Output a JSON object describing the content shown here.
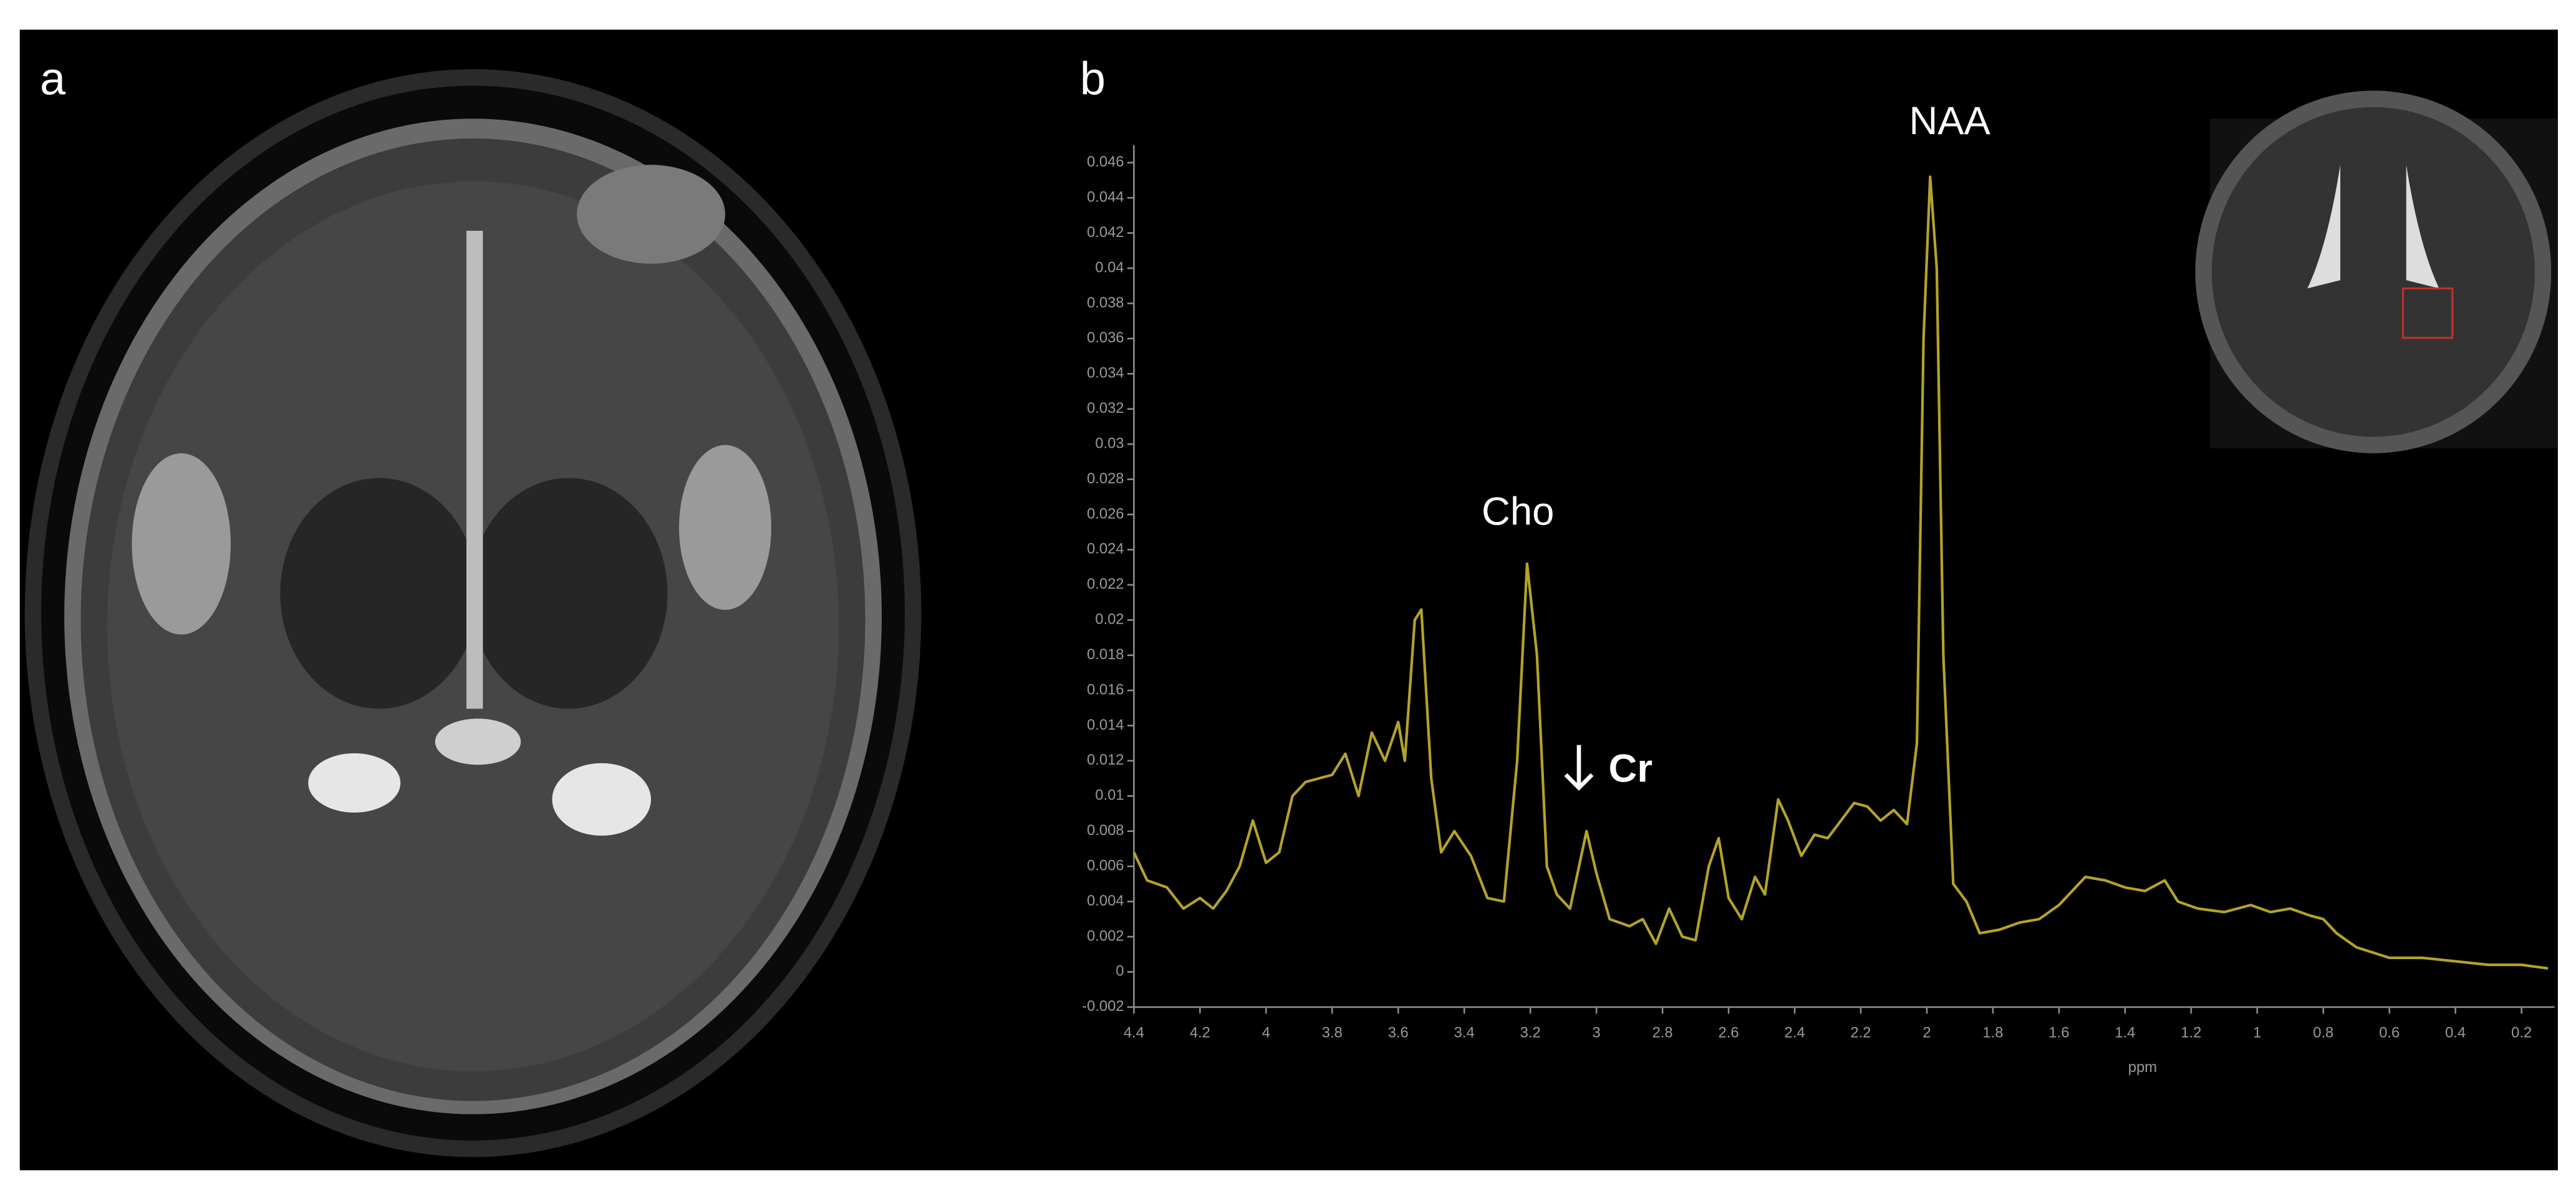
{
  "figure": {
    "panel_labels": [
      "a",
      "b"
    ]
  },
  "chart_data": {
    "type": "line",
    "x_label": "ppm",
    "color": "#b3a32a",
    "annotations": [
      "Cho",
      "Cr",
      "NAA"
    ],
    "xlim": [
      4.4,
      0.1
    ],
    "ylim": [
      -0.002,
      0.047
    ],
    "xticks": [
      4.4,
      4.2,
      4,
      3.8,
      3.6,
      3.4,
      3.2,
      3,
      2.8,
      2.6,
      2.4,
      2.2,
      2,
      1.8,
      1.6,
      1.4,
      1.2,
      1,
      0.8,
      0.6,
      0.4,
      0.2
    ],
    "yticks": [
      -0.002,
      0,
      0.002,
      0.004,
      0.006,
      0.008,
      0.01,
      0.012,
      0.014,
      0.016,
      0.018,
      0.02,
      0.022,
      0.024,
      0.026,
      0.028,
      0.03,
      0.032,
      0.034,
      0.036,
      0.038,
      0.04,
      0.042,
      0.044,
      0.046
    ],
    "x": [
      4.4,
      4.36,
      4.3,
      4.25,
      4.2,
      4.16,
      4.12,
      4.08,
      4.04,
      4.0,
      3.96,
      3.92,
      3.88,
      3.84,
      3.8,
      3.76,
      3.72,
      3.68,
      3.64,
      3.6,
      3.58,
      3.55,
      3.53,
      3.5,
      3.47,
      3.43,
      3.38,
      3.33,
      3.28,
      3.24,
      3.21,
      3.18,
      3.15,
      3.12,
      3.08,
      3.03,
      3.0,
      2.96,
      2.9,
      2.86,
      2.82,
      2.78,
      2.74,
      2.7,
      2.66,
      2.63,
      2.6,
      2.56,
      2.52,
      2.49,
      2.45,
      2.42,
      2.38,
      2.34,
      2.3,
      2.26,
      2.22,
      2.18,
      2.14,
      2.1,
      2.06,
      2.03,
      2.01,
      1.99,
      1.97,
      1.95,
      1.92,
      1.88,
      1.84,
      1.78,
      1.72,
      1.66,
      1.6,
      1.56,
      1.52,
      1.46,
      1.4,
      1.34,
      1.28,
      1.24,
      1.18,
      1.1,
      1.02,
      0.96,
      0.9,
      0.84,
      0.8,
      0.76,
      0.7,
      0.6,
      0.5,
      0.4,
      0.3,
      0.2,
      0.12
    ],
    "values": [
      0.0068,
      0.0052,
      0.0048,
      0.0036,
      0.0042,
      0.0036,
      0.0046,
      0.006,
      0.0086,
      0.0062,
      0.0068,
      0.01,
      0.0108,
      0.011,
      0.0112,
      0.0124,
      0.01,
      0.0136,
      0.012,
      0.0142,
      0.012,
      0.02,
      0.0206,
      0.011,
      0.0068,
      0.008,
      0.0066,
      0.0042,
      0.004,
      0.012,
      0.0232,
      0.018,
      0.006,
      0.0044,
      0.0036,
      0.008,
      0.0056,
      0.003,
      0.0026,
      0.003,
      0.0016,
      0.0036,
      0.002,
      0.0018,
      0.006,
      0.0076,
      0.0042,
      0.003,
      0.0054,
      0.0044,
      0.0098,
      0.0086,
      0.0066,
      0.0078,
      0.0076,
      0.0086,
      0.0096,
      0.0094,
      0.0086,
      0.0092,
      0.0084,
      0.013,
      0.036,
      0.0452,
      0.04,
      0.018,
      0.005,
      0.004,
      0.0022,
      0.0024,
      0.0028,
      0.003,
      0.0038,
      0.0046,
      0.0054,
      0.0052,
      0.0048,
      0.0046,
      0.0052,
      0.004,
      0.0036,
      0.0034,
      0.0038,
      0.0034,
      0.0036,
      0.0032,
      0.003,
      0.0022,
      0.0014,
      0.0008,
      0.0008,
      0.0006,
      0.0004,
      0.0004,
      0.0002
    ]
  }
}
